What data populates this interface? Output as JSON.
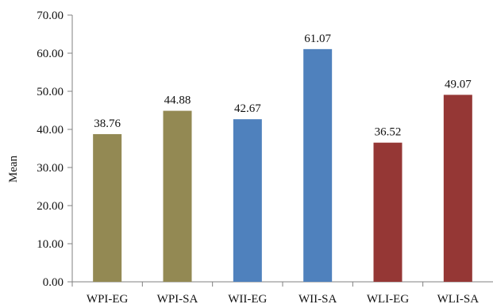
{
  "chart_data": {
    "type": "bar",
    "categories": [
      "WPI-EG",
      "WPI-SA",
      "WII-EG",
      "WII-SA",
      "WLI-EG",
      "WLI-SA"
    ],
    "values": [
      38.76,
      44.88,
      42.67,
      61.07,
      36.52,
      49.07
    ],
    "value_labels": [
      "38.76",
      "44.88",
      "42.67",
      "61.07",
      "36.52",
      "49.07"
    ],
    "colors": [
      "#938953",
      "#938953",
      "#4f81bd",
      "#4f81bd",
      "#953735",
      "#953735"
    ],
    "ylabel": "Mean",
    "xlabel": "",
    "title": "",
    "ylim": [
      0,
      70
    ],
    "yticks": [
      0,
      10,
      20,
      30,
      40,
      50,
      60,
      70
    ],
    "ytick_labels": [
      "0.00",
      "10.00",
      "20.00",
      "30.00",
      "40.00",
      "50.00",
      "60.00",
      "70.00"
    ],
    "grid": false,
    "legend": "none"
  }
}
